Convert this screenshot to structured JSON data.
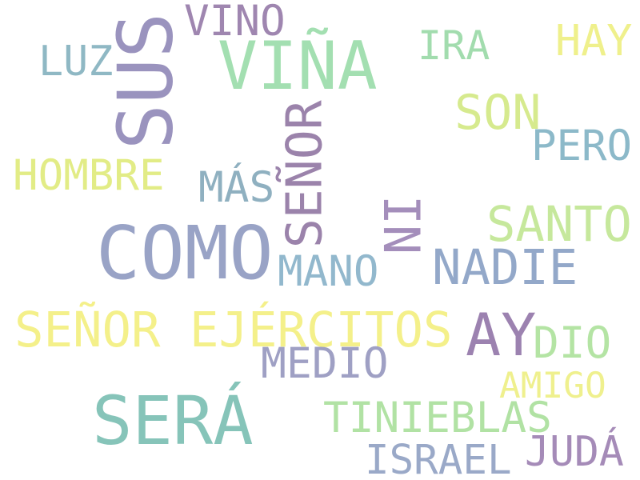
{
  "word_cloud": {
    "words": [
      {
        "key": "sus",
        "text": "SUS",
        "color": "#9a93be"
      },
      {
        "key": "vino",
        "text": "VINO",
        "color": "#9f86b0"
      },
      {
        "key": "vina",
        "text": "VIÑA",
        "color": "#a3dfb1"
      },
      {
        "key": "ira",
        "text": "IRA",
        "color": "#a2dcae"
      },
      {
        "key": "hay",
        "text": "HAY",
        "color": "#eff08c"
      },
      {
        "key": "luz",
        "text": "LUZ",
        "color": "#8fb8c4"
      },
      {
        "key": "son",
        "text": "SON",
        "color": "#d6ea8e"
      },
      {
        "key": "pero",
        "text": "PERO",
        "color": "#8cb9c9"
      },
      {
        "key": "hombre",
        "text": "HOMBRE",
        "color": "#e2ec86"
      },
      {
        "key": "mas",
        "text": "MÁS",
        "color": "#8fb0c0"
      },
      {
        "key": "senor_v",
        "text": "SEÑOR",
        "color": "#9b83ab"
      },
      {
        "key": "ni",
        "text": "NI",
        "color": "#a48ebb"
      },
      {
        "key": "santo",
        "text": "SANTO",
        "color": "#c6e89c"
      },
      {
        "key": "como",
        "text": "COMO",
        "color": "#99a3c6"
      },
      {
        "key": "mano",
        "text": "MANO",
        "color": "#92b8cd"
      },
      {
        "key": "nadie",
        "text": "NADIE",
        "color": "#93a8c9"
      },
      {
        "key": "senor_ejercitos",
        "text": "SEÑOR EJÉRCITOS",
        "color": "#f4f08a"
      },
      {
        "key": "ay",
        "text": "AY",
        "color": "#9c82b0"
      },
      {
        "key": "dio",
        "text": "DIO",
        "color": "#b4e4a4"
      },
      {
        "key": "medio",
        "text": "MEDIO",
        "color": "#9fa0c4"
      },
      {
        "key": "amigo",
        "text": "AMIGO",
        "color": "#eff08e"
      },
      {
        "key": "sera",
        "text": "SERÁ",
        "color": "#86c4b9"
      },
      {
        "key": "tinieblas",
        "text": "TINIEBLAS",
        "color": "#b1e2a4"
      },
      {
        "key": "israel",
        "text": "ISRAEL",
        "color": "#9aa9c8"
      },
      {
        "key": "juda",
        "text": "JUDÁ",
        "color": "#a58bb8"
      }
    ]
  }
}
